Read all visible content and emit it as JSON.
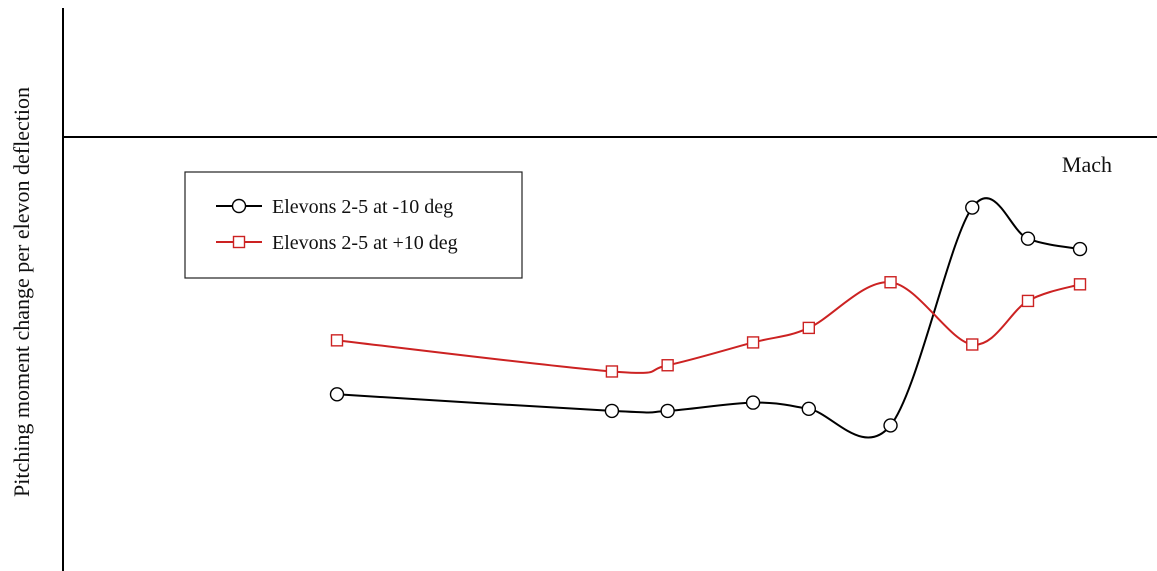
{
  "chart_data": {
    "type": "line",
    "title": "",
    "xlabel": "Mach",
    "ylabel": "Pitching moment change per elevon deflection",
    "grid": false,
    "legend_position": "upper-left",
    "series": [
      {
        "name": "Elevons 2-5 at -10 deg",
        "color": "#000000",
        "marker": "circle",
        "points": [
          {
            "x": 0.0,
            "y": -0.62
          },
          {
            "x": 0.37,
            "y": -0.66
          },
          {
            "x": 0.445,
            "y": -0.66
          },
          {
            "x": 0.56,
            "y": -0.64
          },
          {
            "x": 0.635,
            "y": -0.655
          },
          {
            "x": 0.745,
            "y": -0.695
          },
          {
            "x": 0.855,
            "y": -0.17
          },
          {
            "x": 0.93,
            "y": -0.245
          },
          {
            "x": 1.0,
            "y": -0.27
          }
        ]
      },
      {
        "name": "Elevons 2-5 at +10 deg",
        "color": "#cc2222",
        "marker": "square",
        "points": [
          {
            "x": 0.0,
            "y": -0.49
          },
          {
            "x": 0.37,
            "y": -0.565
          },
          {
            "x": 0.445,
            "y": -0.55
          },
          {
            "x": 0.56,
            "y": -0.495
          },
          {
            "x": 0.635,
            "y": -0.46
          },
          {
            "x": 0.745,
            "y": -0.35
          },
          {
            "x": 0.855,
            "y": -0.5
          },
          {
            "x": 0.93,
            "y": -0.395
          },
          {
            "x": 1.0,
            "y": -0.355
          }
        ]
      }
    ]
  }
}
